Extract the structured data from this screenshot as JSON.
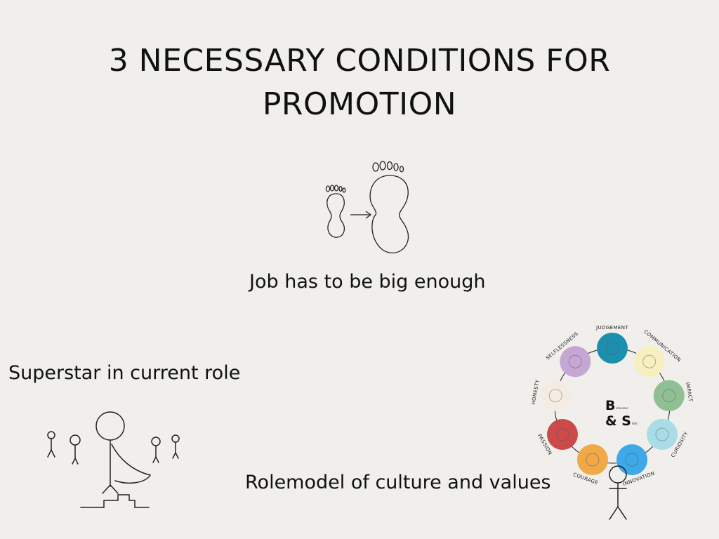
{
  "slide": {
    "title_line1": "3 NECESSARY CONDITIONS FOR",
    "title_line2": "PROMOTION",
    "condition_job": "Job has to be big enough",
    "condition_superstar": "Superstar in current role",
    "condition_rolemodel": "Rolemodel of culture and values"
  },
  "values_wheel": {
    "center_b": "B",
    "center_b_small": "ehaviour",
    "center_s": "& S",
    "center_s_small": "kills",
    "items": [
      {
        "label": "JUDGEMENT",
        "color": "#1c8fae"
      },
      {
        "label": "COMMUNICATION",
        "color": "#f6f0c0"
      },
      {
        "label": "IMPACT",
        "color": "#8fbf92"
      },
      {
        "label": "CURIOSITY",
        "color": "#a8dde8"
      },
      {
        "label": "INNOVATION",
        "color": "#3ea8e8"
      },
      {
        "label": "COURAGE",
        "color": "#f0a848"
      },
      {
        "label": "PASSION",
        "color": "#cc4a4a"
      },
      {
        "label": "HONESTY",
        "color": "#f4ece2"
      },
      {
        "label": "SELFLESSNESS",
        "color": "#c6a6d2"
      }
    ]
  }
}
